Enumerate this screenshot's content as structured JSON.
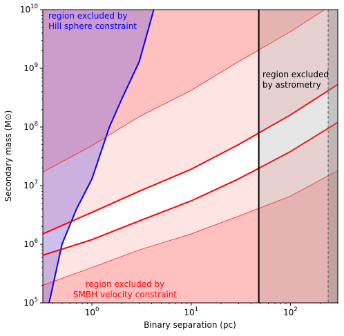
{
  "chart_data": {
    "type": "line",
    "title": "",
    "xlabel": "Binary separation (pc)",
    "ylabel": "Secondary mass (M⊙)",
    "xscale": "log",
    "yscale": "log",
    "xlim": [
      0.32,
      300
    ],
    "ylim": [
      100000,
      10000000000
    ],
    "grid": false,
    "x_ticks": [
      {
        "value": 1,
        "base": "10",
        "exp": "0"
      },
      {
        "value": 10,
        "base": "10",
        "exp": "1"
      },
      {
        "value": 100,
        "base": "10",
        "exp": "2"
      }
    ],
    "y_ticks": [
      {
        "value": 100000,
        "base": "10",
        "exp": "5"
      },
      {
        "value": 1000000,
        "base": "10",
        "exp": "6"
      },
      {
        "value": 10000000,
        "base": "10",
        "exp": "7"
      },
      {
        "value": 100000000,
        "base": "10",
        "exp": "8"
      },
      {
        "value": 1000000000,
        "base": "10",
        "exp": "9"
      },
      {
        "value": 10000000000,
        "base": "10",
        "exp": "10"
      }
    ],
    "curves": [
      {
        "role": "hill-sphere-boundary",
        "color": "#0000ff",
        "style": "solid",
        "x": [
          0.37,
          0.5,
          0.7,
          1.0,
          1.5,
          2.0,
          3.0,
          4.2
        ],
        "y": [
          100000,
          1000000,
          4000000,
          13000000,
          100000000,
          300000000,
          1300000000,
          10000000000
        ]
      },
      {
        "role": "velocity-limit-outer-upper",
        "color": "#ff0000",
        "style": "thin",
        "x": [
          0.32,
          1,
          3,
          10,
          30,
          100,
          300
        ],
        "y": [
          17000000,
          48000000,
          150000000,
          420000000,
          1300000000,
          4200000000,
          14000000000
        ]
      },
      {
        "role": "velocity-limit-upper",
        "color": "#ff0000",
        "style": "solid",
        "x": [
          0.32,
          1,
          3,
          10,
          30,
          100,
          300
        ],
        "y": [
          1500000,
          3500000,
          8000000,
          19000000,
          50000000,
          160000000,
          530000000
        ]
      },
      {
        "role": "velocity-limit-lower",
        "color": "#ff0000",
        "style": "solid",
        "x": [
          0.32,
          1,
          3,
          10,
          30,
          100,
          300
        ],
        "y": [
          650000,
          1200000,
          2500000,
          5500000,
          13000000,
          38000000,
          120000000
        ]
      },
      {
        "role": "velocity-limit-outer-lower",
        "color": "#ff0000",
        "style": "thin",
        "x": [
          0.32,
          1,
          3,
          10,
          30,
          100,
          300
        ],
        "y": [
          200000,
          400000,
          800000,
          1500000,
          3000000,
          6600000,
          18000000
        ]
      }
    ],
    "vertical_lines": [
      {
        "x": 48,
        "color": "#000000",
        "style": "solid"
      },
      {
        "x": 240,
        "color": "#555555",
        "style": "dashed"
      }
    ],
    "annotations": {
      "hill": {
        "line1": "region excluded by",
        "line2": "Hill sphere constraint",
        "color": "#0000ff"
      },
      "astrometry": {
        "line1": "region excluded",
        "line2": "by astrometry",
        "color": "#000000"
      },
      "velocity": {
        "line1": "region excluded by",
        "line2": "SMBH velocity constraint",
        "color": "#ff0000"
      }
    },
    "colors": {
      "hill_region": "#8e70d8",
      "velocity_outer": "#ffc0c0",
      "velocity_inner": "#ffe4e4",
      "astrometry_region": "#808080",
      "line_red": "#ff0000",
      "line_blue": "#0000ff"
    }
  }
}
